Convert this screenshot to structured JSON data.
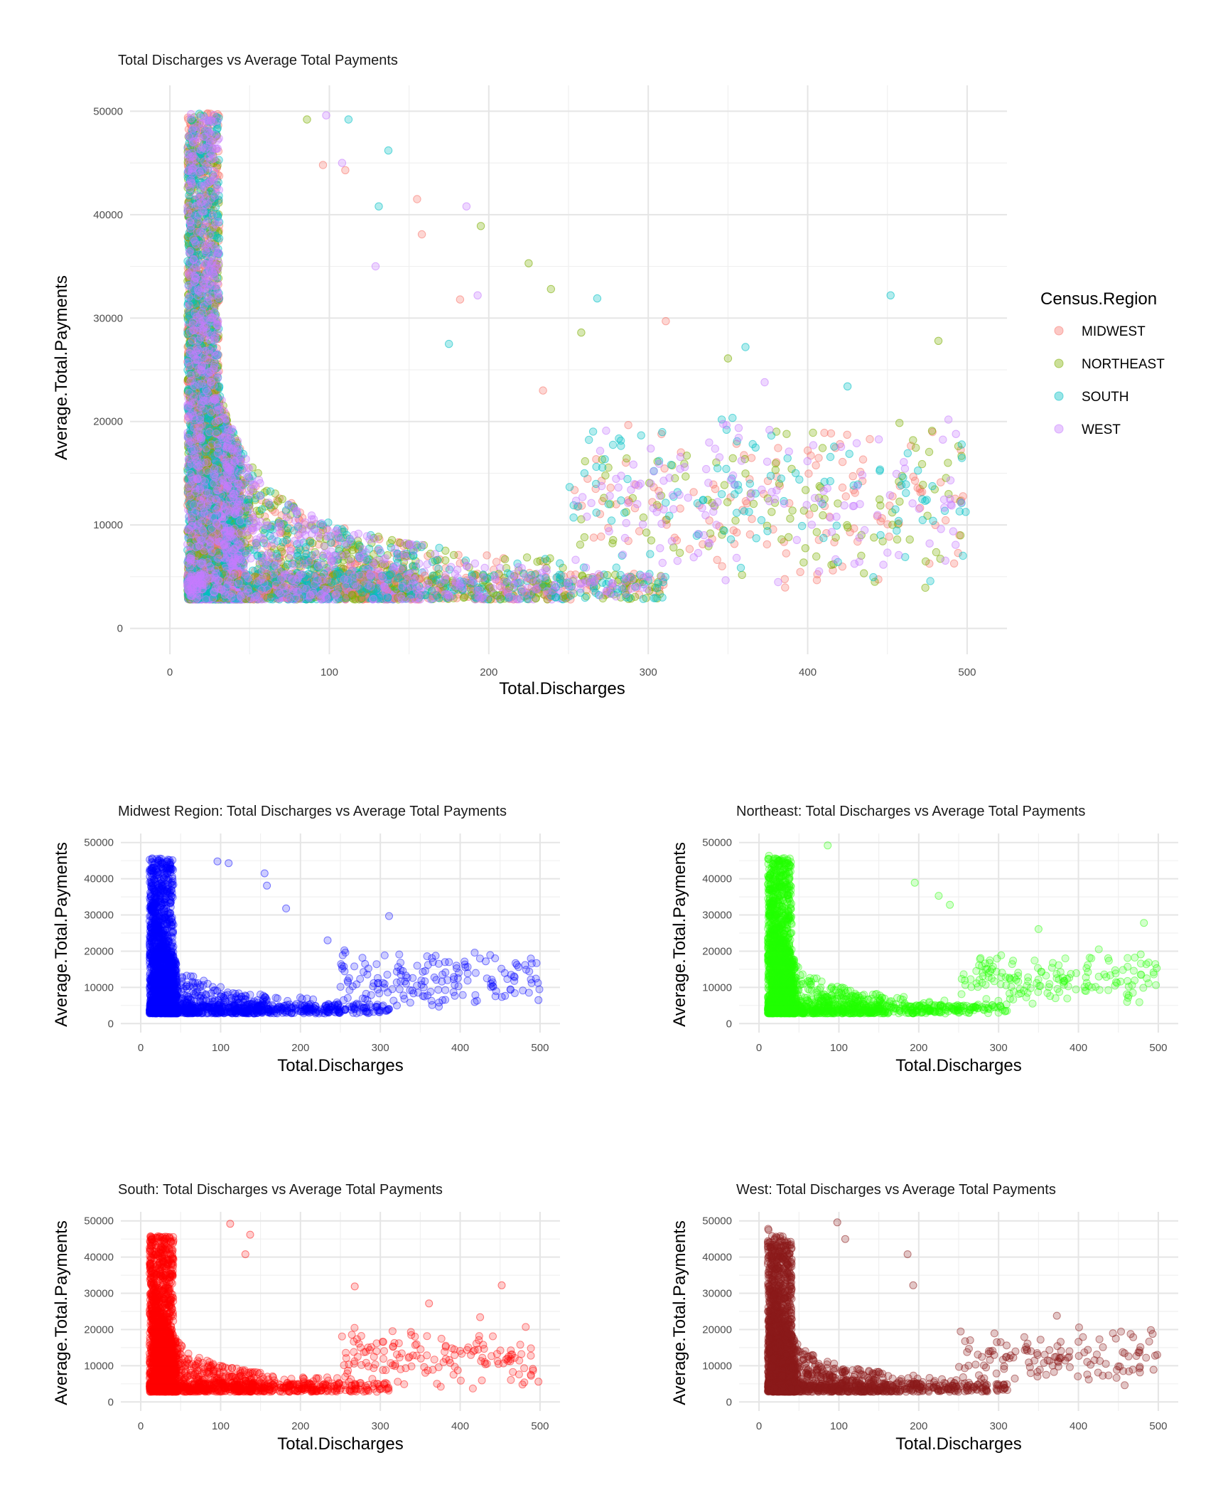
{
  "chart_data": [
    {
      "id": "main",
      "type": "scatter",
      "title": "Total Discharges vs Average Total Payments",
      "xlabel": "Total.Discharges",
      "ylabel": "Average.Total.Payments",
      "xlim": [
        -25,
        525
      ],
      "ylim": [
        -2500,
        52500
      ],
      "x_ticks": [
        0,
        100,
        200,
        300,
        400,
        500
      ],
      "y_ticks": [
        0,
        10000,
        20000,
        30000,
        40000,
        50000
      ],
      "grid": true,
      "point_alpha": 0.3,
      "legend": {
        "title": "Census.Region",
        "placement": "right",
        "entries": [
          {
            "label": "MIDWEST",
            "color": "#F8766D"
          },
          {
            "label": "NORTHEAST",
            "color": "#7CAE00"
          },
          {
            "label": "SOUTH",
            "color": "#00BFC4"
          },
          {
            "label": "WEST",
            "color": "#C77CFF"
          }
        ]
      },
      "series": [
        {
          "name": "MIDWEST",
          "color": "#F8766D"
        },
        {
          "name": "NORTHEAST",
          "color": "#7CAE00"
        },
        {
          "name": "SOUTH",
          "color": "#00BFC4"
        },
        {
          "name": "WEST",
          "color": "#C77CFF"
        }
      ],
      "outliers": [
        {
          "series": "SOUTH",
          "points": [
            [
              452,
              32200
            ],
            [
              361,
              27200
            ],
            [
              268,
              31900
            ],
            [
              425,
              23400
            ],
            [
              131,
              40800
            ],
            [
              112,
              49200
            ],
            [
              137,
              46200
            ],
            [
              175,
              27500
            ]
          ]
        },
        {
          "series": "MIDWEST",
          "points": [
            [
              311,
              29700
            ],
            [
              155,
              41500
            ],
            [
              158,
              38100
            ],
            [
              234,
              23000
            ],
            [
              96,
              44800
            ],
            [
              110,
              44300
            ],
            [
              182,
              31800
            ]
          ]
        },
        {
          "series": "NORTHEAST",
          "points": [
            [
              482,
              27800
            ],
            [
              195,
              38900
            ],
            [
              239,
              32800
            ],
            [
              225,
              35300
            ],
            [
              350,
              26100
            ],
            [
              478,
              19100
            ],
            [
              258,
              28600
            ],
            [
              86,
              49200
            ]
          ]
        },
        {
          "series": "WEST",
          "points": [
            [
              186,
              40800
            ],
            [
              98,
              49600
            ],
            [
              193,
              32200
            ],
            [
              373,
              23800
            ],
            [
              493,
              18800
            ],
            [
              108,
              45000
            ],
            [
              129,
              35000
            ]
          ]
        }
      ]
    },
    {
      "id": "midwest",
      "type": "scatter",
      "title": "Midwest Region: Total Discharges vs Average Total Payments",
      "xlabel": "Total.Discharges",
      "ylabel": "Average.Total.Payments",
      "xlim": [
        -25,
        525
      ],
      "ylim": [
        -2500,
        52500
      ],
      "x_ticks": [
        0,
        100,
        200,
        300,
        400,
        500
      ],
      "y_ticks": [
        0,
        10000,
        20000,
        30000,
        40000,
        50000
      ],
      "grid": true,
      "point_alpha": 0.2,
      "series": [
        {
          "name": "MIDWEST",
          "color": "#0000FF"
        }
      ],
      "outliers": [
        {
          "series": "MIDWEST",
          "points": [
            [
              311,
              29700
            ],
            [
              155,
              41500
            ],
            [
              158,
              38100
            ],
            [
              234,
              23000
            ],
            [
              96,
              44800
            ],
            [
              110,
              44300
            ],
            [
              182,
              31800
            ],
            [
              498,
              6500
            ],
            [
              471,
              16200
            ],
            [
              432,
              17200
            ]
          ]
        }
      ]
    },
    {
      "id": "northeast",
      "type": "scatter",
      "title": "Northeast: Total Discharges vs Average Total Payments",
      "xlabel": "Total.Discharges",
      "ylabel": "Average.Total.Payments",
      "xlim": [
        -25,
        525
      ],
      "ylim": [
        -2500,
        52500
      ],
      "x_ticks": [
        0,
        100,
        200,
        300,
        400,
        500
      ],
      "y_ticks": [
        0,
        10000,
        20000,
        30000,
        40000,
        50000
      ],
      "grid": true,
      "point_alpha": 0.2,
      "series": [
        {
          "name": "NORTHEAST",
          "color": "#22FF00"
        }
      ],
      "outliers": [
        {
          "series": "NORTHEAST",
          "points": [
            [
              482,
              27800
            ],
            [
              195,
              38900
            ],
            [
              239,
              32800
            ],
            [
              225,
              35300
            ],
            [
              350,
              26100
            ],
            [
              478,
              19100
            ],
            [
              498,
              15300
            ],
            [
              86,
              49200
            ]
          ]
        }
      ]
    },
    {
      "id": "south",
      "type": "scatter",
      "title": "South: Total Discharges vs Average Total Payments",
      "xlabel": "Total.Discharges",
      "ylabel": "Average.Total.Payments",
      "xlim": [
        -25,
        525
      ],
      "ylim": [
        -2500,
        52500
      ],
      "x_ticks": [
        0,
        100,
        200,
        300,
        400,
        500
      ],
      "y_ticks": [
        0,
        10000,
        20000,
        30000,
        40000,
        50000
      ],
      "grid": true,
      "point_alpha": 0.2,
      "series": [
        {
          "name": "SOUTH",
          "color": "#FF0000"
        }
      ],
      "outliers": [
        {
          "series": "SOUTH",
          "points": [
            [
              452,
              32200
            ],
            [
              361,
              27200
            ],
            [
              268,
              31900
            ],
            [
              425,
              23400
            ],
            [
              131,
              40800
            ],
            [
              112,
              49200
            ],
            [
              137,
              46200
            ],
            [
              498,
              5600
            ],
            [
              491,
              9100
            ]
          ]
        }
      ]
    },
    {
      "id": "west",
      "type": "scatter",
      "title": "West: Total Discharges vs Average Total Payments",
      "xlabel": "Total.Discharges",
      "ylabel": "Average.Total.Payments",
      "xlim": [
        -25,
        525
      ],
      "ylim": [
        -2500,
        52500
      ],
      "x_ticks": [
        0,
        100,
        200,
        300,
        400,
        500
      ],
      "y_ticks": [
        0,
        10000,
        20000,
        30000,
        40000,
        50000
      ],
      "grid": true,
      "point_alpha": 0.25,
      "series": [
        {
          "name": "WEST",
          "color": "#8B1A1A"
        }
      ],
      "outliers": [
        {
          "series": "WEST",
          "points": [
            [
              186,
              40800
            ],
            [
              98,
              49600
            ],
            [
              193,
              32200
            ],
            [
              373,
              23800
            ],
            [
              493,
              18800
            ],
            [
              494,
              8900
            ],
            [
              108,
              45000
            ]
          ]
        }
      ]
    }
  ]
}
